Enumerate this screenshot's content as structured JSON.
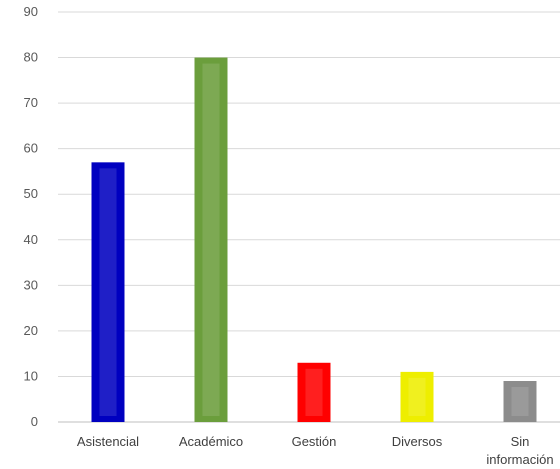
{
  "chart_data": {
    "type": "bar",
    "categories": [
      [
        "Asistencial"
      ],
      [
        "Académico"
      ],
      [
        "Gestión"
      ],
      [
        "Diversos"
      ],
      [
        "Sin",
        "información"
      ]
    ],
    "values": [
      57,
      80,
      13,
      11,
      9
    ],
    "colors": [
      "#0000C0",
      "#6B9E3C",
      "#FF0000",
      "#EEEE00",
      "#8C8C8C"
    ],
    "ylim": [
      0,
      90
    ],
    "yticks": [
      0,
      10,
      20,
      30,
      40,
      50,
      60,
      70,
      80,
      90
    ],
    "grid": true,
    "gridline_color": "#D9D9D9",
    "title": "",
    "xlabel": "",
    "ylabel": ""
  }
}
